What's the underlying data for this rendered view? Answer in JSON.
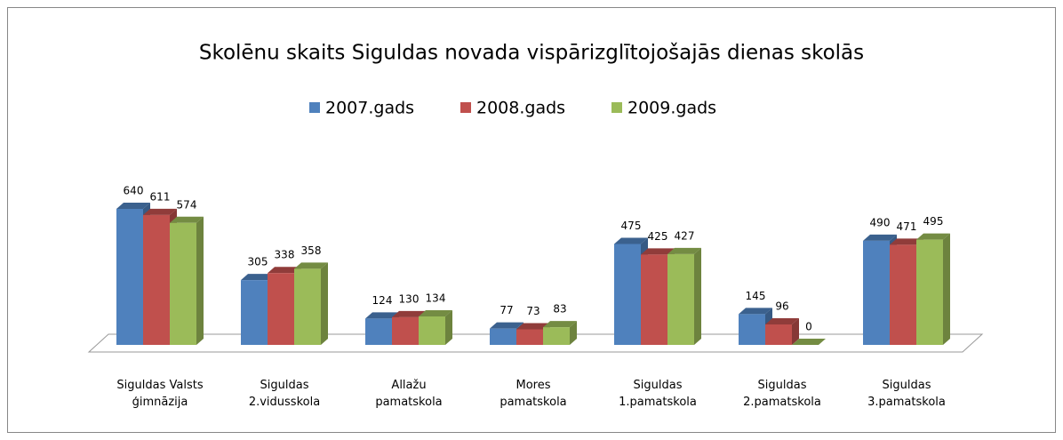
{
  "chart_data": {
    "type": "bar3d",
    "title": "Skolēnu skaits Siguldas novada vispārizglītojošajās dienas skolās",
    "categories": [
      "Siguldas Valsts\nģimnāzija",
      "Siguldas\n2.vidusskola",
      "Allažu\npamatskola",
      "Mores\npamatskola",
      "Siguldas\n1.pamatskola",
      "Siguldas\n2.pamatskola",
      "Siguldas\n3.pamatskola"
    ],
    "series": [
      {
        "name": "2007.gads",
        "color": "#4f81bd",
        "values": [
          640,
          305,
          124,
          77,
          475,
          145,
          490
        ]
      },
      {
        "name": "2008.gads",
        "color": "#c0504d",
        "values": [
          611,
          338,
          130,
          73,
          425,
          96,
          471
        ]
      },
      {
        "name": "2009.gads",
        "color": "#9bbb59",
        "values": [
          574,
          358,
          134,
          83,
          427,
          0,
          495
        ]
      }
    ],
    "legend": "top"
  }
}
